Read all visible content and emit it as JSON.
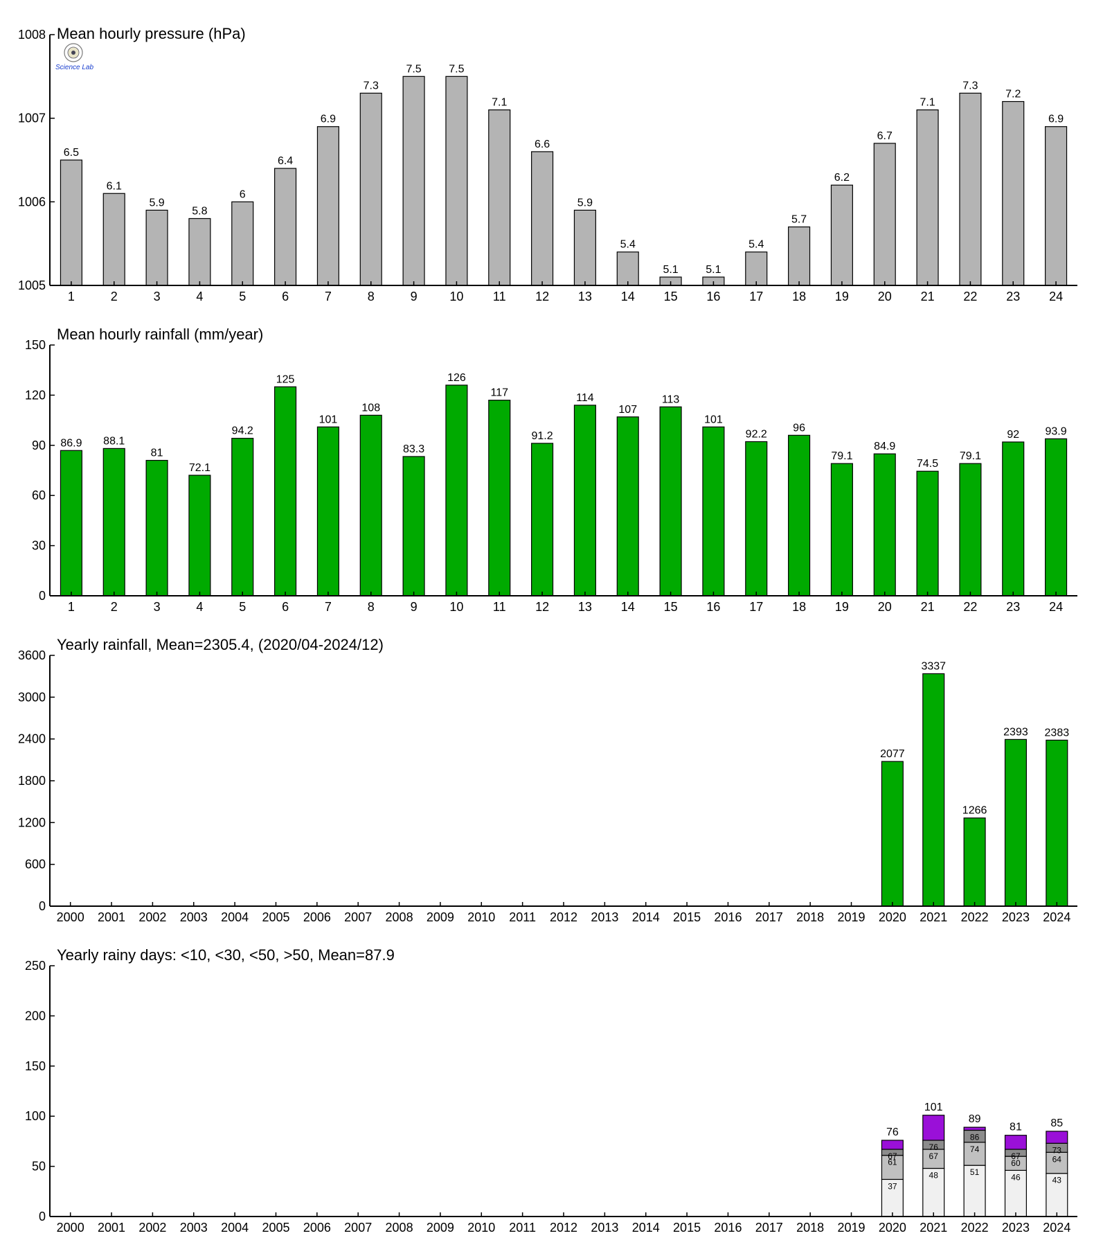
{
  "colors": {
    "pressure_bar": "#b4b4b4",
    "rain_bar": "#00aa00",
    "axis": "#000000",
    "days_lt10": "#f0f0f0",
    "days_lt30": "#c0c0c0",
    "days_lt50": "#8c8c8c",
    "days_gt50": "#9a10d8"
  },
  "logo": {
    "icon": "station-seal-logo-icon",
    "text": "Science Lab"
  },
  "chart_data": [
    {
      "id": "pressure",
      "type": "bar",
      "title": "Mean hourly pressure (hPa)",
      "categories": [
        "1",
        "2",
        "3",
        "4",
        "5",
        "6",
        "7",
        "8",
        "9",
        "10",
        "11",
        "12",
        "13",
        "14",
        "15",
        "16",
        "17",
        "18",
        "19",
        "20",
        "21",
        "22",
        "23",
        "24"
      ],
      "values": [
        1006.5,
        1006.1,
        1005.9,
        1005.8,
        1006.0,
        1006.4,
        1006.9,
        1007.3,
        1007.5,
        1007.5,
        1007.1,
        1006.6,
        1005.9,
        1005.4,
        1005.1,
        1005.1,
        1005.4,
        1005.7,
        1006.2,
        1006.7,
        1007.1,
        1007.3,
        1007.2,
        1006.9
      ],
      "value_labels": [
        "6.5",
        "6.1",
        "5.9",
        "5.8",
        "6",
        "6.4",
        "6.9",
        "7.3",
        "7.5",
        "7.5",
        "7.1",
        "6.6",
        "5.9",
        "5.4",
        "5.1",
        "5.1",
        "5.4",
        "5.7",
        "6.2",
        "6.7",
        "7.1",
        "7.3",
        "7.2",
        "6.9"
      ],
      "ylim": [
        1005,
        1008
      ],
      "yticks": [
        "1005",
        "1006",
        "1007",
        "1008"
      ],
      "color": "#b4b4b4"
    },
    {
      "id": "hourly_rain",
      "type": "bar",
      "title": "Mean hourly rainfall (mm/year)",
      "categories": [
        "1",
        "2",
        "3",
        "4",
        "5",
        "6",
        "7",
        "8",
        "9",
        "10",
        "11",
        "12",
        "13",
        "14",
        "15",
        "16",
        "17",
        "18",
        "19",
        "20",
        "21",
        "22",
        "23",
        "24"
      ],
      "values": [
        86.9,
        88.1,
        81,
        72.1,
        94.2,
        125,
        101,
        108,
        83.3,
        126,
        117,
        91.2,
        114,
        107,
        113,
        101,
        92.2,
        96,
        79.1,
        84.9,
        74.5,
        79.1,
        92,
        93.9
      ],
      "value_labels": [
        "86.9",
        "88.1",
        "81",
        "72.1",
        "94.2",
        "125",
        "101",
        "108",
        "83.3",
        "126",
        "117",
        "91.2",
        "114",
        "107",
        "113",
        "101",
        "92.2",
        "96",
        "79.1",
        "84.9",
        "74.5",
        "79.1",
        "92",
        "93.9"
      ],
      "ylim": [
        0,
        150
      ],
      "yticks": [
        "0",
        "30",
        "60",
        "90",
        "120",
        "150"
      ],
      "color": "#00aa00"
    },
    {
      "id": "yearly_rain",
      "type": "bar",
      "title": "Yearly rainfall, Mean=2305.4, (2020/04-2024/12)",
      "categories": [
        "2000",
        "2001",
        "2002",
        "2003",
        "2004",
        "2005",
        "2006",
        "2007",
        "2008",
        "2009",
        "2010",
        "2011",
        "2012",
        "2013",
        "2014",
        "2015",
        "2016",
        "2017",
        "2018",
        "2019",
        "2020",
        "2021",
        "2022",
        "2023",
        "2024"
      ],
      "values": [
        null,
        null,
        null,
        null,
        null,
        null,
        null,
        null,
        null,
        null,
        null,
        null,
        null,
        null,
        null,
        null,
        null,
        null,
        null,
        null,
        2077,
        3337,
        1266,
        2393,
        2383
      ],
      "value_labels": [
        "",
        "",
        "",
        "",
        "",
        "",
        "",
        "",
        "",
        "",
        "",
        "",
        "",
        "",
        "",
        "",
        "",
        "",
        "",
        "",
        "2077",
        "3337",
        "1266",
        "2393",
        "2383"
      ],
      "ylim": [
        0,
        3600
      ],
      "yticks": [
        "0",
        "600",
        "1200",
        "1800",
        "2400",
        "3000",
        "3600"
      ],
      "color": "#00aa00"
    },
    {
      "id": "rainy_days",
      "type": "bar",
      "stacked": true,
      "title": "Yearly rainy days: <10, <30, <50, >50, Mean=87.9",
      "categories": [
        "2000",
        "2001",
        "2002",
        "2003",
        "2004",
        "2005",
        "2006",
        "2007",
        "2008",
        "2009",
        "2010",
        "2011",
        "2012",
        "2013",
        "2014",
        "2015",
        "2016",
        "2017",
        "2018",
        "2019",
        "2020",
        "2021",
        "2022",
        "2023",
        "2024"
      ],
      "cumulative": [
        null,
        null,
        null,
        null,
        null,
        null,
        null,
        null,
        null,
        null,
        null,
        null,
        null,
        null,
        null,
        null,
        null,
        null,
        null,
        null,
        [
          37,
          61,
          67,
          76
        ],
        [
          48,
          67,
          76,
          101
        ],
        [
          51,
          74,
          86,
          89
        ],
        [
          46,
          60,
          67,
          81
        ],
        [
          43,
          64,
          73,
          85
        ]
      ],
      "segment_labels": [
        null,
        null,
        null,
        null,
        null,
        null,
        null,
        null,
        null,
        null,
        null,
        null,
        null,
        null,
        null,
        null,
        null,
        null,
        null,
        null,
        [
          "37",
          "61",
          "67"
        ],
        [
          "48",
          "67",
          "76"
        ],
        [
          "51",
          "74",
          "86"
        ],
        [
          "46",
          "60",
          "67"
        ],
        [
          "43",
          "64",
          "73"
        ]
      ],
      "total_labels": [
        "",
        "",
        "",
        "",
        "",
        "",
        "",
        "",
        "",
        "",
        "",
        "",
        "",
        "",
        "",
        "",
        "",
        "",
        "",
        "",
        "76",
        "101",
        "89",
        "81",
        "85"
      ],
      "ylim": [
        0,
        250
      ],
      "yticks": [
        "0",
        "50",
        "100",
        "150",
        "200",
        "250"
      ],
      "segment_colors": [
        "#f0f0f0",
        "#c0c0c0",
        "#8c8c8c",
        "#9a10d8"
      ]
    }
  ]
}
